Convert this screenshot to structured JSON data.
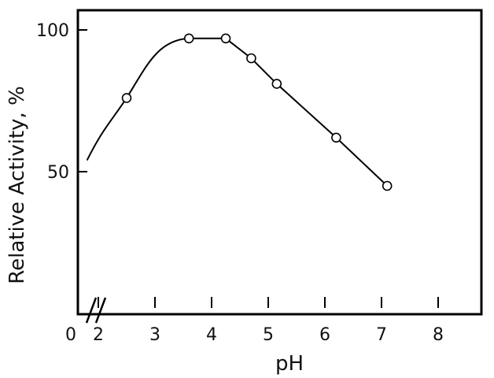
{
  "chart_data": {
    "type": "line",
    "xlabel": "pH",
    "ylabel": "Relative Activity, %",
    "xlim": [
      0,
      8
    ],
    "ylim": [
      0,
      105
    ],
    "x_axis_break": true,
    "x_ticks": [
      "0",
      "2",
      "3",
      "4",
      "5",
      "6",
      "7",
      "8"
    ],
    "y_ticks": [
      "100",
      "50"
    ],
    "grid": false,
    "legend": "none",
    "series": [
      {
        "markers": "open-circle",
        "points": [
          {
            "x": 2.5,
            "y": 76
          },
          {
            "x": 3.6,
            "y": 97
          },
          {
            "x": 4.25,
            "y": 97
          },
          {
            "x": 4.7,
            "y": 90
          },
          {
            "x": 5.15,
            "y": 81
          },
          {
            "x": 6.2,
            "y": 62
          },
          {
            "x": 7.1,
            "y": 45
          }
        ],
        "curve_start": {
          "x": 1.8,
          "y": 54
        },
        "line_color": "#000000"
      }
    ]
  }
}
